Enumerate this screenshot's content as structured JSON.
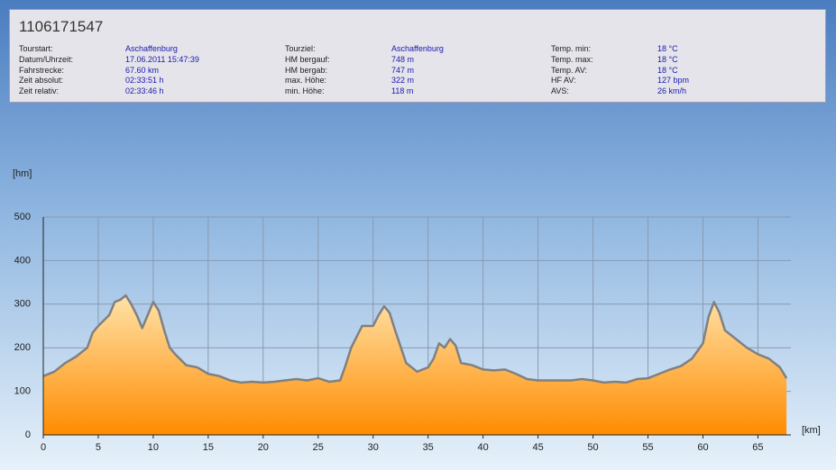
{
  "header": {
    "title": "1106171547",
    "columns": [
      {
        "rows": [
          {
            "label": "Tourstart:",
            "value": "Aschaffenburg"
          },
          {
            "label": "Datum/Uhrzeit:",
            "value": "17.06.2011 15:47:39"
          },
          {
            "label": "Fahrstrecke:",
            "value": "67.60 km"
          },
          {
            "label": "Zeit absolut:",
            "value": "02:33:51 h"
          },
          {
            "label": "Zeit relativ:",
            "value": "02:33:46 h"
          }
        ]
      },
      {
        "rows": [
          {
            "label": "Tourziel:",
            "value": "Aschaffenburg"
          },
          {
            "label": "HM bergauf:",
            "value": "748 m"
          },
          {
            "label": "HM bergab:",
            "value": "747 m"
          },
          {
            "label": "max. Höhe:",
            "value": "322 m"
          },
          {
            "label": "min. Höhe:",
            "value": "118 m"
          }
        ]
      },
      {
        "rows": [
          {
            "label": "Temp. min:",
            "value": "18 °C"
          },
          {
            "label": "Temp. max:",
            "value": "18 °C"
          },
          {
            "label": "Temp. AV:",
            "value": "18 °C"
          },
          {
            "label": "HF AV:",
            "value": "127 bpm"
          },
          {
            "label": "AVS:",
            "value": "26 km/h"
          }
        ]
      }
    ]
  },
  "chart_data": {
    "type": "area",
    "y_label": "[hm]",
    "x_label": "[km]",
    "x": [
      0,
      1,
      2,
      3,
      4,
      4.5,
      5,
      6,
      6.5,
      7,
      7.5,
      8,
      8.5,
      9,
      9.5,
      10,
      10.5,
      11,
      11.5,
      12,
      13,
      14,
      15,
      16,
      17,
      18,
      19,
      20,
      21,
      22,
      23,
      24,
      25,
      26,
      27,
      27.5,
      28,
      29,
      30,
      30.5,
      31,
      31.5,
      32,
      33,
      34,
      35,
      35.5,
      36,
      36.5,
      37,
      37.5,
      38,
      39,
      40,
      41,
      42,
      43,
      44,
      45,
      46,
      47,
      48,
      49,
      50,
      51,
      52,
      53,
      54,
      55,
      56,
      57,
      58,
      59,
      60,
      60.5,
      61,
      61.5,
      62,
      63,
      64,
      65,
      66,
      67,
      67.6
    ],
    "values": [
      135,
      145,
      165,
      180,
      200,
      235,
      250,
      275,
      305,
      310,
      320,
      300,
      275,
      245,
      275,
      305,
      285,
      240,
      200,
      185,
      160,
      155,
      140,
      135,
      125,
      120,
      122,
      120,
      122,
      125,
      128,
      125,
      130,
      122,
      125,
      160,
      200,
      250,
      250,
      275,
      295,
      280,
      240,
      165,
      145,
      155,
      175,
      210,
      200,
      220,
      205,
      165,
      160,
      150,
      148,
      150,
      140,
      128,
      125,
      125,
      125,
      125,
      128,
      125,
      120,
      122,
      120,
      128,
      130,
      140,
      150,
      158,
      175,
      210,
      270,
      305,
      280,
      240,
      220,
      200,
      185,
      175,
      155,
      130
    ],
    "line_color": "#808080",
    "fill_top": "#ffe2a8",
    "fill_bottom": "#ff8c00",
    "xlim": [
      0,
      68
    ],
    "ylim": [
      0,
      500
    ],
    "xticks": [
      0,
      5,
      10,
      15,
      20,
      25,
      30,
      35,
      40,
      45,
      50,
      55,
      60,
      65
    ],
    "yticks": [
      0,
      100,
      200,
      300,
      400,
      500
    ],
    "grid": true
  }
}
